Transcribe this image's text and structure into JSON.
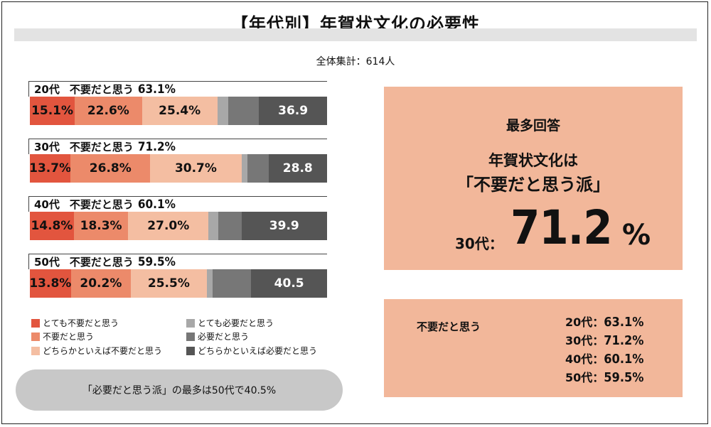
{
  "title": "【年代別】年賀状文化の必要性",
  "subtitle": "全体集計：614人",
  "colors": {
    "s1": "#e2553e",
    "s2": "#ec8a6a",
    "s3": "#f4bea2",
    "s4": "#a8a8a8",
    "s5": "#777777",
    "s6": "#555555"
  },
  "chart_data": {
    "type": "bar",
    "stacked": true,
    "orientation": "horizontal",
    "categories": [
      "20代",
      "30代",
      "40代",
      "50代"
    ],
    "group_label": "不要だと思う",
    "group_totals": [
      "63.1%",
      "71.2%",
      "60.1%",
      "59.5%"
    ],
    "series": [
      {
        "name": "とても不要だと思う",
        "values": [
          15.1,
          13.7,
          14.8,
          13.8
        ],
        "labels": [
          "15.1%",
          "13.7%",
          "14.8%",
          "13.8%"
        ]
      },
      {
        "name": "不要だと思う",
        "values": [
          22.6,
          26.8,
          18.3,
          20.2
        ],
        "labels": [
          "22.6%",
          "26.8%",
          "18.3%",
          "20.2%"
        ]
      },
      {
        "name": "どちらかといえば不要だと思う",
        "values": [
          25.4,
          30.7,
          27.0,
          25.5
        ],
        "labels": [
          "25.4%",
          "30.7%",
          "27.0%",
          "25.5%"
        ]
      },
      {
        "name": "とても必要だと思う",
        "values": [
          3.6,
          2.1,
          3.3,
          2.0
        ],
        "labels": [
          "",
          "",
          "",
          ""
        ]
      },
      {
        "name": "必要だと思う",
        "values": [
          10.4,
          7.0,
          7.8,
          13.0
        ],
        "labels": [
          "",
          "",
          "",
          ""
        ]
      },
      {
        "name": "どちらかといえば必要だと思う",
        "values": [
          22.9,
          19.7,
          28.8,
          25.5
        ],
        "labels": [
          "36.9",
          "28.8",
          "39.9",
          "40.5"
        ]
      }
    ]
  },
  "pill_text": "「必要だと思う派」の最多は50代で40.5%",
  "box1": {
    "top_label": "最多回答",
    "line1": "年賀状文化は",
    "line2": "「不要だと思う派」",
    "age": "30代：",
    "big": "71.2",
    "pct_sign": "%"
  },
  "box2": {
    "label": "不要だと思う",
    "rows": [
      {
        "age": "20代：",
        "value": "63.1%"
      },
      {
        "age": "30代：",
        "value": "71.2%"
      },
      {
        "age": "40代：",
        "value": "60.1%"
      },
      {
        "age": "50代：",
        "value": "59.5%"
      }
    ]
  }
}
